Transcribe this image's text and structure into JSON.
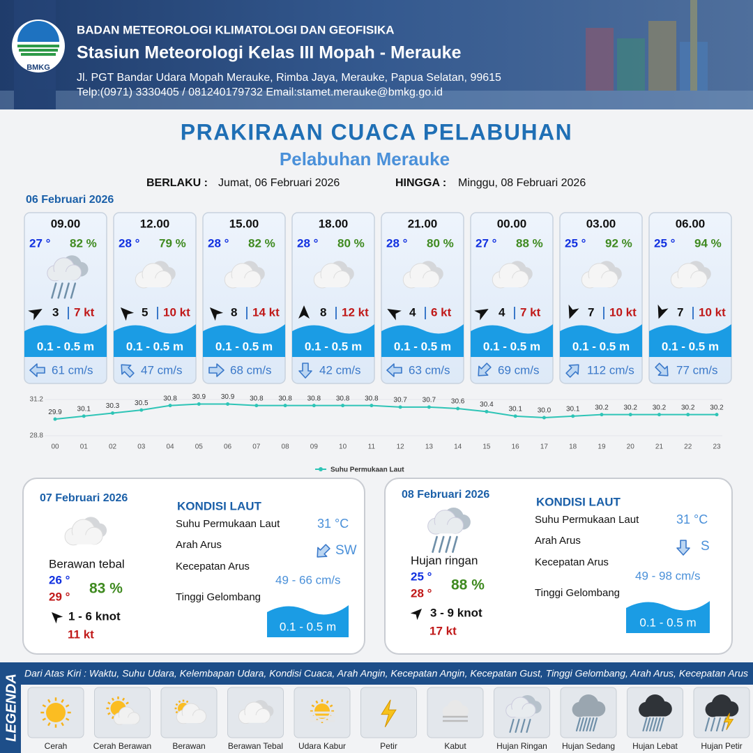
{
  "header": {
    "logo_text": "BMKG",
    "org": "BADAN METEOROLOGI KLIMATOLOGI DAN GEOFISIKA",
    "station": "Stasiun Meteorologi Kelas III Mopah - Merauke",
    "address": "Jl. PGT Bandar Udara Mopah Merauke, Rimba Jaya, Merauke, Papua Selatan, 99615",
    "contact": "Telp:(0971) 3330405 / 081240179732  Email:stamet.merauke@bmkg.go.id"
  },
  "title": "PRAKIRAAN CUACA PELABUHAN",
  "subtitle": "Pelabuhan Merauke",
  "validity": {
    "from_label": "BERLAKU :",
    "from": "Jumat, 06 Februari 2026",
    "to_label": "HINGGA :",
    "to": "Minggu, 08 Februari 2026"
  },
  "day1_date": "06 Februari 2026",
  "forecasts": [
    {
      "time": "09.00",
      "temp": "27 °",
      "humidity": "82 %",
      "wind": "3",
      "gust": "7 kt",
      "wave": "0.1 - 0.5 m",
      "current": "61 cm/s"
    },
    {
      "time": "12.00",
      "temp": "28 °",
      "humidity": "79 %",
      "wind": "5",
      "gust": "10 kt",
      "wave": "0.1 - 0.5 m",
      "current": "47 cm/s"
    },
    {
      "time": "15.00",
      "temp": "28 °",
      "humidity": "82 %",
      "wind": "8",
      "gust": "14 kt",
      "wave": "0.1 - 0.5 m",
      "current": "68 cm/s"
    },
    {
      "time": "18.00",
      "temp": "28 °",
      "humidity": "80 %",
      "wind": "8",
      "gust": "12 kt",
      "wave": "0.1 - 0.5 m",
      "current": "42 cm/s"
    },
    {
      "time": "21.00",
      "temp": "28 °",
      "humidity": "80 %",
      "wind": "4",
      "gust": "6 kt",
      "wave": "0.1 - 0.5 m",
      "current": "63 cm/s"
    },
    {
      "time": "00.00",
      "temp": "27 °",
      "humidity": "88 %",
      "wind": "4",
      "gust": "7 kt",
      "wave": "0.1 - 0.5 m",
      "current": "69 cm/s"
    },
    {
      "time": "03.00",
      "temp": "25 °",
      "humidity": "92 %",
      "wind": "7",
      "gust": "10 kt",
      "wave": "0.1 - 0.5 m",
      "current": "112 cm/s"
    },
    {
      "time": "06.00",
      "temp": "25 °",
      "humidity": "94 %",
      "wind": "7",
      "gust": "10 kt",
      "wave": "0.1 - 0.5 m",
      "current": "77 cm/s"
    }
  ],
  "chart_data": {
    "type": "line",
    "x": [
      "00",
      "01",
      "02",
      "03",
      "04",
      "05",
      "06",
      "07",
      "08",
      "09",
      "10",
      "11",
      "12",
      "13",
      "14",
      "15",
      "16",
      "17",
      "18",
      "19",
      "20",
      "21",
      "22",
      "23"
    ],
    "series": [
      {
        "name": "Suhu Permukaan Laut",
        "color": "#2ec4b6",
        "values": [
          29.9,
          30.1,
          30.3,
          30.5,
          30.8,
          30.9,
          30.9,
          30.8,
          30.8,
          30.8,
          30.8,
          30.8,
          30.7,
          30.7,
          30.6,
          30.4,
          30.1,
          30.0,
          30.1,
          30.2,
          30.2,
          30.2,
          30.2,
          30.2
        ],
        "value_labels": [
          "29.9",
          "30.1",
          "30.3",
          "30.5",
          "30.8",
          "30.9",
          "30.9",
          "30.8",
          "30.8",
          "30.8",
          "30.8",
          "30.8",
          "30.7",
          "30.7",
          "30.6",
          "30.4",
          "30.1",
          "30.0",
          "30.1",
          "30.2",
          "30.2",
          "30.2",
          "30.2",
          "30.2"
        ]
      }
    ],
    "ylim": [
      28.8,
      31.2
    ],
    "yticks": [
      28.8,
      31.2
    ]
  },
  "days": [
    {
      "date": "07 Februari 2026",
      "condition": "Berawan tebal",
      "temp_min": "26 °",
      "temp_max": "29 °",
      "humidity": "83 %",
      "wind": "1 - 6 knot",
      "gust": "11 kt",
      "sea_title": "KONDISI LAUT",
      "sst_label": "Suhu Permukaan Laut",
      "sst": "31 °C",
      "dir_label": "Arah Arus",
      "dir": "SW",
      "speed_label": "Kecepatan Arus",
      "speed": "49 - 66 cm/s",
      "wave_label": "Tinggi Gelombang",
      "wave": "0.1 - 0.5 m"
    },
    {
      "date": "08 Februari 2026",
      "condition": "Hujan ringan",
      "temp_min": "25 °",
      "temp_max": "28 °",
      "humidity": "88 %",
      "wind": "3 - 9 knot",
      "gust": "17 kt",
      "sea_title": "KONDISI LAUT",
      "sst_label": "Suhu Permukaan Laut",
      "sst": "31 °C",
      "dir_label": "Arah Arus",
      "dir": "S",
      "speed_label": "Kecepatan Arus",
      "speed": "49 - 98 cm/s",
      "wave_label": "Tinggi Gelombang",
      "wave": "0.1 - 0.5 m"
    }
  ],
  "legend": {
    "title": "LEGENDA",
    "description": "Dari Atas Kiri : Waktu, Suhu Udara, Kelembapan Udara, Kondisi Cuaca, Arah Angin, Kecepatan Angin, Kecepatan Gust, Tinggi Gelombang, Arah Arus, Kecepatan Arus",
    "items": [
      "Cerah",
      "Cerah Berawan",
      "Berawan",
      "Berawan Tebal",
      "Udara Kabur",
      "Petir",
      "Kabut",
      "Hujan Ringan",
      "Hujan Sedang",
      "Hujan Lebat",
      "Hujan Petir"
    ]
  }
}
